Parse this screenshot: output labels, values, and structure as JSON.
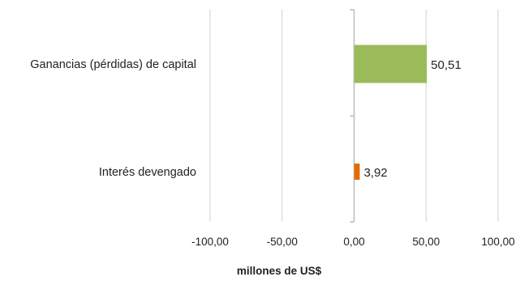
{
  "chart_data": {
    "type": "bar",
    "orientation": "horizontal",
    "categories": [
      "Ganancias (pérdidas) de capital",
      "Interés devengado"
    ],
    "values": [
      50.51,
      3.92
    ],
    "value_labels": [
      "50,51",
      "3,92"
    ],
    "bar_colors": [
      "#9bbb59",
      "#e36c0a"
    ],
    "xlabel": "millones de US$",
    "xlim": [
      -100,
      100
    ],
    "x_ticks": [
      -100,
      -50,
      0,
      50,
      100
    ],
    "x_tick_labels": [
      "-100,00",
      "-50,00",
      "0,00",
      "50,00",
      "100,00"
    ],
    "grid": true,
    "legend": "none"
  }
}
